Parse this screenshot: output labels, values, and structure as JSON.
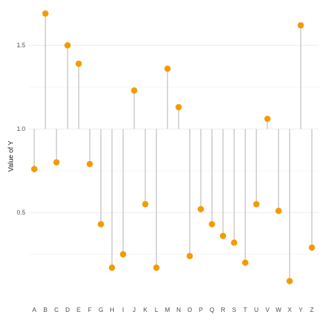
{
  "chart_data": {
    "type": "lollipop",
    "title": "",
    "xlabel": "",
    "ylabel": "Value of Y",
    "baseline": 1.0,
    "ylim": [
      0.0,
      1.73
    ],
    "yticks": [
      0.5,
      1.0,
      1.5
    ],
    "ytick_labels": [
      "0.5",
      "1.0",
      "1.5"
    ],
    "grid": true,
    "categories": [
      "A",
      "B",
      "C",
      "D",
      "E",
      "F",
      "G",
      "H",
      "I",
      "J",
      "K",
      "L",
      "M",
      "N",
      "O",
      "P",
      "Q",
      "R",
      "S",
      "T",
      "U",
      "V",
      "W",
      "X",
      "Y",
      "Z"
    ],
    "values": [
      0.76,
      1.69,
      0.8,
      1.5,
      1.39,
      0.79,
      0.43,
      0.17,
      0.25,
      1.23,
      0.55,
      0.17,
      1.36,
      1.13,
      0.24,
      0.52,
      0.43,
      0.36,
      0.32,
      0.2,
      0.55,
      1.06,
      0.51,
      0.09,
      1.62,
      0.29
    ],
    "colors": {
      "point": "#f59a00",
      "stem": "#c8c8c8",
      "grid_major": "#ebebeb",
      "grid_minor": "#f5f5f5"
    }
  }
}
